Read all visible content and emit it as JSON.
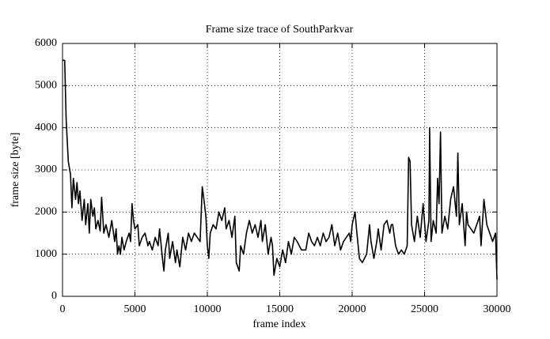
{
  "chart_data": {
    "type": "line",
    "title": "Frame size trace of SouthParkvar",
    "xlabel": "frame index",
    "ylabel": "frame size [byte]",
    "x": [
      0,
      150,
      250,
      400,
      550,
      650,
      750,
      900,
      1000,
      1100,
      1200,
      1350,
      1500,
      1600,
      1750,
      1850,
      1950,
      2100,
      2200,
      2300,
      2450,
      2600,
      2700,
      2850,
      3000,
      3200,
      3400,
      3600,
      3700,
      3800,
      3900,
      4000,
      4100,
      4250,
      4400,
      4600,
      4700,
      4800,
      4900,
      5000,
      5200,
      5300,
      5500,
      5700,
      5900,
      6000,
      6200,
      6400,
      6600,
      6700,
      6900,
      7000,
      7100,
      7300,
      7400,
      7600,
      7800,
      7900,
      8100,
      8300,
      8500,
      8700,
      8900,
      9100,
      9300,
      9500,
      9650,
      9800,
      9900,
      10000,
      10100,
      10200,
      10400,
      10600,
      10800,
      11000,
      11200,
      11300,
      11500,
      11700,
      11900,
      12000,
      12200,
      12300,
      12500,
      12700,
      12900,
      13100,
      13300,
      13500,
      13700,
      13800,
      14000,
      14200,
      14400,
      14500,
      14600,
      14800,
      15000,
      15200,
      15400,
      15600,
      15800,
      16000,
      16200,
      16500,
      16800,
      17000,
      17200,
      17400,
      17600,
      17800,
      18000,
      18200,
      18400,
      18600,
      18800,
      19000,
      19200,
      19400,
      19600,
      19800,
      19900,
      20000,
      20200,
      20300,
      20500,
      20700,
      21000,
      21200,
      21300,
      21500,
      21700,
      21800,
      22000,
      22200,
      22400,
      22600,
      22700,
      22800,
      23000,
      23200,
      23400,
      23600,
      23800,
      23900,
      24000,
      24100,
      24300,
      24500,
      24700,
      24900,
      25100,
      25300,
      25350,
      25450,
      25600,
      25800,
      25900,
      26000,
      26100,
      26200,
      26400,
      26600,
      26800,
      27000,
      27200,
      27300,
      27400,
      27600,
      27800,
      27900,
      28000,
      28200,
      28400,
      28600,
      28800,
      28900,
      29100,
      29300,
      29500,
      29700,
      29900,
      30000
    ],
    "values": [
      5600,
      5600,
      4200,
      3200,
      2900,
      2100,
      2800,
      2300,
      2700,
      2200,
      2500,
      1800,
      2300,
      1700,
      2200,
      1500,
      2300,
      1900,
      2100,
      1600,
      1800,
      1550,
      2350,
      1500,
      1700,
      1400,
      1800,
      1300,
      1600,
      1000,
      1200,
      1000,
      1400,
      1100,
      1300,
      1500,
      1300,
      2200,
      1800,
      1600,
      1700,
      1200,
      1400,
      1500,
      1200,
      1300,
      1100,
      1400,
      1200,
      1600,
      900,
      600,
      1100,
      1500,
      900,
      1300,
      800,
      1100,
      700,
      1400,
      1100,
      1500,
      1300,
      1500,
      1400,
      1300,
      2600,
      2200,
      1900,
      1200,
      900,
      1500,
      1700,
      1600,
      2000,
      1800,
      2100,
      1600,
      1800,
      1400,
      1900,
      800,
      600,
      1200,
      1000,
      1500,
      1800,
      1500,
      1700,
      1400,
      1800,
      1300,
      1700,
      1000,
      1400,
      1200,
      500,
      900,
      700,
      1100,
      800,
      1300,
      1000,
      1400,
      1300,
      1100,
      1100,
      1500,
      1300,
      1200,
      1400,
      1200,
      1500,
      1300,
      1400,
      1700,
      1200,
      1500,
      1100,
      1300,
      1400,
      1500,
      1300,
      1700,
      2000,
      1600,
      900,
      800,
      1000,
      1700,
      1300,
      900,
      1300,
      1600,
      1100,
      1700,
      1800,
      1500,
      1700,
      1700,
      1200,
      1000,
      1100,
      1000,
      1200,
      3300,
      3200,
      1700,
      1300,
      1900,
      1400,
      2200,
      1300,
      1800,
      4000,
      1300,
      1800,
      1500,
      2800,
      2200,
      3900,
      1500,
      1900,
      1600,
      2300,
      2600,
      1900,
      3400,
      1700,
      2200,
      1200,
      2000,
      1700,
      1600,
      1500,
      1700,
      1900,
      1200,
      2300,
      1700,
      1500,
      1300,
      1500,
      400
    ],
    "color": "#000000",
    "xlim": [
      0,
      30000
    ],
    "ylim": [
      0,
      6000
    ],
    "xticks": [
      0,
      5000,
      10000,
      15000,
      20000,
      25000,
      30000
    ],
    "yticks": [
      0,
      1000,
      2000,
      3000,
      4000,
      5000,
      6000
    ],
    "grid": true
  }
}
